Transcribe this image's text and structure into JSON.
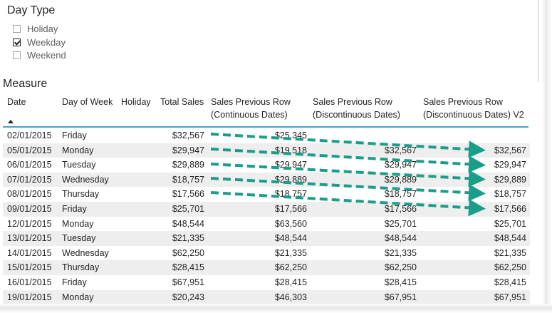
{
  "slicer": {
    "title": "Day Type",
    "items": [
      {
        "label": "Holiday",
        "checked": false
      },
      {
        "label": "Weekday",
        "checked": true
      },
      {
        "label": "Weekend",
        "checked": false
      }
    ]
  },
  "table": {
    "title": "Measure",
    "columns": {
      "date": "Date",
      "dow": "Day of Week",
      "holiday": "Holiday",
      "total": "Total Sales",
      "cont_l1": "Sales Previous Row",
      "cont_l2": "(Continuous Dates)",
      "disc_l1": "Sales Previous Row",
      "disc_l2": "(Discontinuous Dates)",
      "v2_l1": "Sales Previous Row",
      "v2_l2": "(Discontinuous Dates) V2"
    },
    "sort": "ascending",
    "rows": [
      {
        "date": "02/01/2015",
        "dow": "Friday",
        "total": "$32,567",
        "cont": "$25,345",
        "disc": "",
        "v2": ""
      },
      {
        "date": "05/01/2015",
        "dow": "Monday",
        "total": "$29,947",
        "cont": "$19,518",
        "disc": "$32,567",
        "v2": "$32,567"
      },
      {
        "date": "06/01/2015",
        "dow": "Tuesday",
        "total": "$29,889",
        "cont": "$29,947",
        "disc": "$29,947",
        "v2": "$29,947"
      },
      {
        "date": "07/01/2015",
        "dow": "Wednesday",
        "total": "$18,757",
        "cont": "$29,889",
        "disc": "$29,889",
        "v2": "$29,889"
      },
      {
        "date": "08/01/2015",
        "dow": "Thursday",
        "total": "$17,566",
        "cont": "$18,757",
        "disc": "$18,757",
        "v2": "$18,757"
      },
      {
        "date": "09/01/2015",
        "dow": "Friday",
        "total": "$25,701",
        "cont": "$17,566",
        "disc": "$17,566",
        "v2": "$17,566"
      },
      {
        "date": "12/01/2015",
        "dow": "Monday",
        "total": "$48,544",
        "cont": "$63,560",
        "disc": "$25,701",
        "v2": "$25,701"
      },
      {
        "date": "13/01/2015",
        "dow": "Tuesday",
        "total": "$21,335",
        "cont": "$48,544",
        "disc": "$48,544",
        "v2": "$48,544"
      },
      {
        "date": "14/01/2015",
        "dow": "Wednesday",
        "total": "$62,250",
        "cont": "$21,335",
        "disc": "$21,335",
        "v2": "$21,335"
      },
      {
        "date": "15/01/2015",
        "dow": "Thursday",
        "total": "$28,415",
        "cont": "$62,250",
        "disc": "$62,250",
        "v2": "$62,250"
      },
      {
        "date": "16/01/2015",
        "dow": "Friday",
        "total": "$67,951",
        "cont": "$28,415",
        "disc": "$28,415",
        "v2": "$28,415"
      },
      {
        "date": "19/01/2015",
        "dow": "Monday",
        "total": "$20,243",
        "cont": "$46,303",
        "disc": "$67,951",
        "v2": "$67,951"
      }
    ]
  },
  "annotation": {
    "arrow_color": "#1a9e8a",
    "arrow_style": "dashed"
  }
}
